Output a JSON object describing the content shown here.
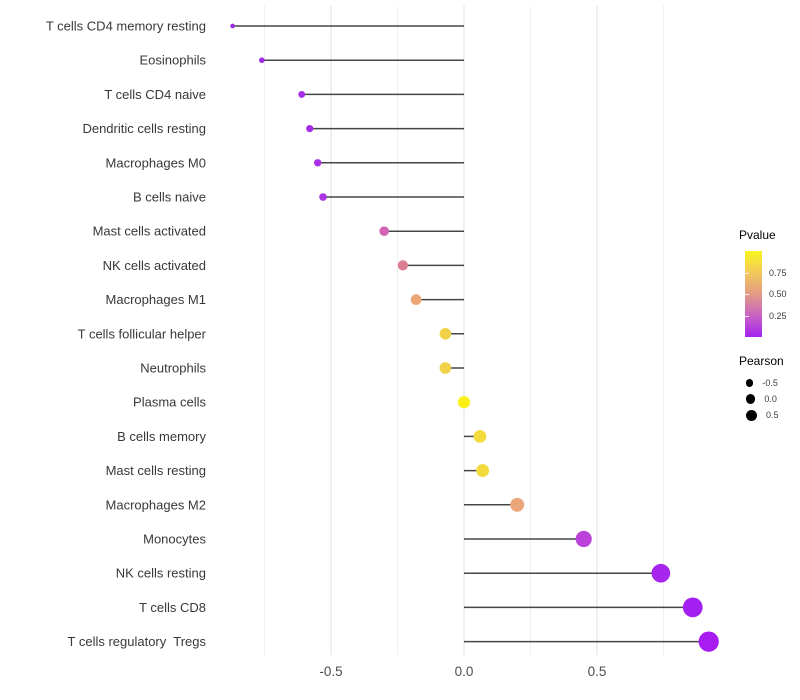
{
  "chart_data": {
    "type": "scatter",
    "subtype": "lollipop",
    "title": "",
    "xlabel": "",
    "ylabel": "",
    "xlim": [
      -0.96,
      1.0
    ],
    "x_major_ticks": [
      -0.5,
      0.0,
      0.5
    ],
    "x_tick_labels": [
      "-0.5",
      "0.0",
      "0.5"
    ],
    "x_minor_gridlines": [
      -0.75,
      -0.25,
      0.25,
      0.75
    ],
    "grid": "vertical gridlines only, light gray, white panel background",
    "legend_position": "right",
    "rows": [
      {
        "label": "T cells CD4 memory resting",
        "pearson": -0.87,
        "pvalue": 0.02,
        "color": "#9A2BE2"
      },
      {
        "label": "Eosinophils",
        "pearson": -0.76,
        "pvalue": 0.03,
        "color": "#A02CEA"
      },
      {
        "label": "T cells CD4 naive",
        "pearson": -0.61,
        "pvalue": 0.05,
        "color": "#A42FE6"
      },
      {
        "label": "Dendritic cells resting",
        "pearson": -0.58,
        "pvalue": 0.05,
        "color": "#A52DE8"
      },
      {
        "label": "Macrophages M0",
        "pearson": -0.55,
        "pvalue": 0.06,
        "color": "#A731E5"
      },
      {
        "label": "B cells naive",
        "pearson": -0.53,
        "pvalue": 0.07,
        "color": "#A936E2"
      },
      {
        "label": "Mast cells activated",
        "pearson": -0.3,
        "pvalue": 0.35,
        "color": "#D365B4"
      },
      {
        "label": "NK cells activated",
        "pearson": -0.23,
        "pvalue": 0.46,
        "color": "#DC7E92"
      },
      {
        "label": "Macrophages M1",
        "pearson": -0.18,
        "pvalue": 0.6,
        "color": "#ECA574"
      },
      {
        "label": "T cells follicular helper",
        "pearson": -0.07,
        "pvalue": 0.8,
        "color": "#F1D247"
      },
      {
        "label": "Neutrophils",
        "pearson": -0.07,
        "pvalue": 0.8,
        "color": "#F1D247"
      },
      {
        "label": "Plasma cells",
        "pearson": 0.0,
        "pvalue": 0.97,
        "color": "#F9F019"
      },
      {
        "label": "B cells memory",
        "pearson": 0.06,
        "pvalue": 0.85,
        "color": "#F4DB3D"
      },
      {
        "label": "Mast cells resting",
        "pearson": 0.07,
        "pvalue": 0.85,
        "color": "#F4DB3D"
      },
      {
        "label": "Macrophages M2",
        "pearson": 0.2,
        "pvalue": 0.57,
        "color": "#EBA77A"
      },
      {
        "label": "Monocytes",
        "pearson": 0.45,
        "pvalue": 0.18,
        "color": "#BC43DA"
      },
      {
        "label": "NK cells resting",
        "pearson": 0.74,
        "pvalue": 0.04,
        "color": "#A626EE"
      },
      {
        "label": "T cells CD8",
        "pearson": 0.86,
        "pvalue": 0.02,
        "color": "#A321F0"
      },
      {
        "label": "T cells regulatory  Tregs",
        "pearson": 0.92,
        "pvalue": 0.01,
        "color": "#A81CF2"
      }
    ],
    "legend": {
      "pvalue": {
        "title": "Pvalue",
        "range": [
          0,
          1
        ],
        "ticks": [
          {
            "label": "0.75",
            "value": 0.75
          },
          {
            "label": "0.50",
            "value": 0.5
          },
          {
            "label": "0.25",
            "value": 0.25
          }
        ],
        "gradient_stops_bottom_to_top": [
          "#A323F0",
          "#C863C3",
          "#E39B85",
          "#F2C95A",
          "#F8F51F"
        ]
      },
      "pearson": {
        "title": "Pearson",
        "sizes": [
          {
            "label": "-0.5",
            "radius": 3.7
          },
          {
            "label": "0.0",
            "radius": 4.7
          },
          {
            "label": "0.5",
            "radius": 5.5
          }
        ]
      }
    },
    "style": {
      "stem_color": "#454545",
      "axis_text_color": "#4d4d4d",
      "label_text_color": "#383838",
      "grid_major_color": "#e4e4e4",
      "grid_minor_color": "#efefef"
    }
  }
}
